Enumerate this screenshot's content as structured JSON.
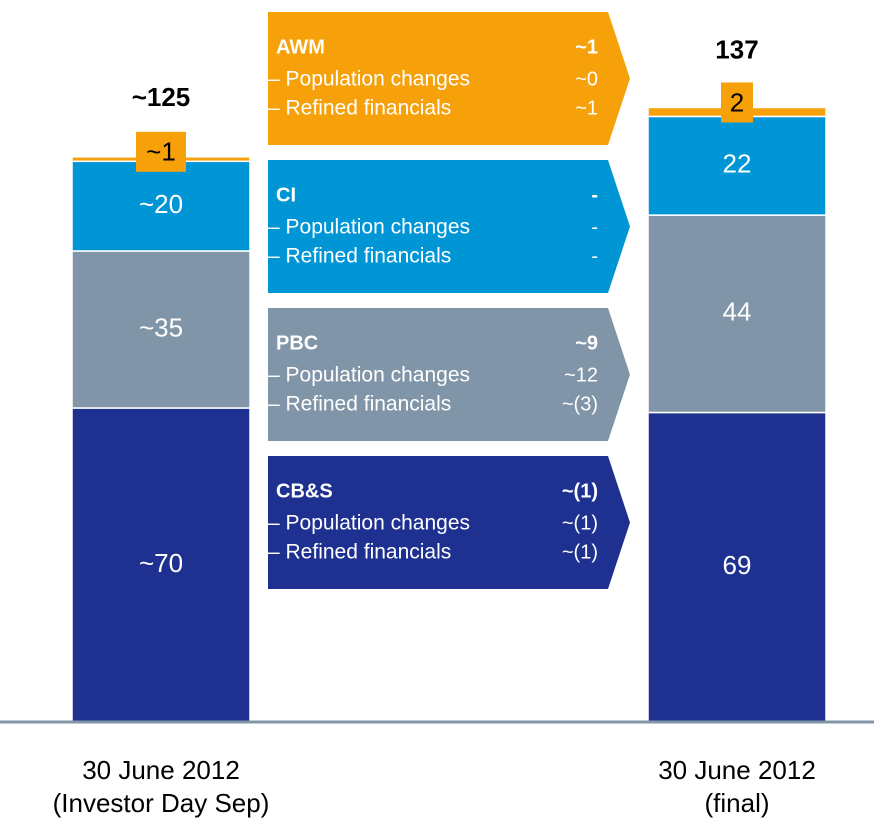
{
  "chart_data": {
    "type": "stacked_bar",
    "categories": [
      [
        "30 June 2012",
        "(Investor Day Sep)"
      ],
      [
        "30 June 2012",
        "(final)"
      ]
    ],
    "ylim": [
      0,
      140
    ],
    "totals": [
      125,
      137
    ],
    "total_labels": [
      "~125",
      "137"
    ],
    "bridge_rows": [
      "– Population changes",
      "– Refined financials"
    ],
    "series": [
      {
        "name": "CB&S",
        "color": "#1f3190",
        "values": [
          70,
          69
        ],
        "value_labels": [
          "~70",
          "69"
        ],
        "change": {
          "value": -1,
          "label": "~(1)",
          "population": -1,
          "population_label": "~(1)",
          "refined": -1,
          "refined_label": "~(1)"
        }
      },
      {
        "name": "PBC",
        "color": "#8096a8",
        "values": [
          35,
          44
        ],
        "value_labels": [
          "~35",
          "44"
        ],
        "change": {
          "value": 9,
          "label": "~9",
          "population": 12,
          "population_label": "~12",
          "refined": -3,
          "refined_label": "~(3)"
        }
      },
      {
        "name": "CI",
        "color": "#0096d6",
        "values": [
          20,
          22
        ],
        "value_labels": [
          "~20",
          "22"
        ],
        "change": {
          "value": 0,
          "label": "-",
          "population": 0,
          "population_label": "-",
          "refined": 0,
          "refined_label": "-"
        }
      },
      {
        "name": "AWM",
        "color": "#f7a10a",
        "values": [
          1,
          2
        ],
        "value_labels": [
          "~1",
          "2"
        ],
        "change": {
          "value": 1,
          "label": "~1",
          "population": 0,
          "population_label": "~0",
          "refined": 1,
          "refined_label": "~1"
        }
      }
    ]
  }
}
